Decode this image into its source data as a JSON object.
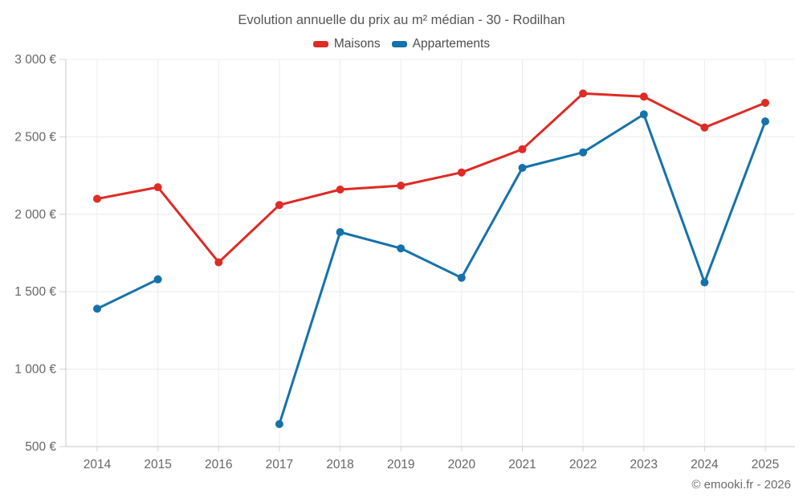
{
  "title": "Evolution annuelle du prix au m² médian - 30 - Rodilhan",
  "footer": "© emooki.fr - 2026",
  "legend": {
    "items": [
      {
        "label": "Maisons",
        "color": "#de2b26"
      },
      {
        "label": "Appartements",
        "color": "#1572ab"
      }
    ]
  },
  "chart_data": {
    "type": "line",
    "title": "Evolution annuelle du prix au m² médian - 30 - Rodilhan",
    "x": [
      2014,
      2015,
      2016,
      2017,
      2018,
      2019,
      2020,
      2021,
      2022,
      2023,
      2024,
      2025
    ],
    "xtick_labels": [
      "2014",
      "2015",
      "2016",
      "2017",
      "2018",
      "2019",
      "2020",
      "2021",
      "2022",
      "2023",
      "2024",
      "2025"
    ],
    "series": [
      {
        "name": "Maisons",
        "color": "#de2b26",
        "values": [
          2100,
          2175,
          1690,
          2060,
          2160,
          2185,
          2270,
          2420,
          2780,
          2760,
          2560,
          2720
        ]
      },
      {
        "name": "Appartements",
        "color": "#1572ab",
        "values": [
          1390,
          1580,
          null,
          645,
          1885,
          1780,
          1590,
          2300,
          2400,
          2645,
          1560,
          2600
        ]
      }
    ],
    "ylim": [
      500,
      3000
    ],
    "yticks": [
      500,
      1000,
      1500,
      2000,
      2500,
      3000
    ],
    "ytick_labels": [
      "500 €",
      "1 000 €",
      "1 500 €",
      "2 000 €",
      "2 500 €",
      "3 000 €"
    ],
    "grid": true,
    "legend_position": "top",
    "unit": "€/m²"
  },
  "colors": {
    "grid": "#ececec",
    "axis": "#c9c9c9",
    "tick": "#d4d4d4",
    "tick_label": "#666666"
  }
}
